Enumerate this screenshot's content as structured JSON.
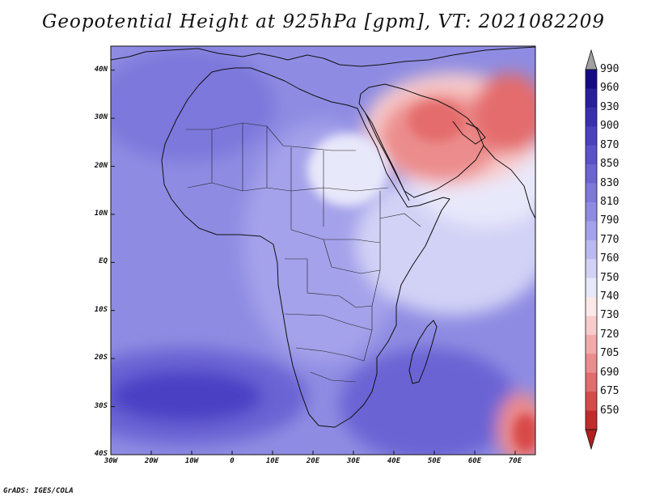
{
  "title": "Geopotential Height at 925hPa [gpm], VT: 2021082209",
  "credit": "GrADS: IGES/COLA",
  "map": {
    "projection": "latlon",
    "lon_range": [
      -30,
      75
    ],
    "lat_range": [
      -40,
      45
    ],
    "lat_ticks": [
      {
        "value": 40,
        "label": "40N"
      },
      {
        "value": 30,
        "label": "30N"
      },
      {
        "value": 20,
        "label": "20N"
      },
      {
        "value": 10,
        "label": "10N"
      },
      {
        "value": 0,
        "label": "EQ"
      },
      {
        "value": -10,
        "label": "10S"
      },
      {
        "value": -20,
        "label": "20S"
      },
      {
        "value": -30,
        "label": "30S"
      },
      {
        "value": -40,
        "label": "40S"
      }
    ],
    "lon_ticks": [
      {
        "value": -30,
        "label": "30W"
      },
      {
        "value": -20,
        "label": "20W"
      },
      {
        "value": -10,
        "label": "10W"
      },
      {
        "value": 0,
        "label": "0"
      },
      {
        "value": 10,
        "label": "10E"
      },
      {
        "value": 20,
        "label": "20E"
      },
      {
        "value": 30,
        "label": "30E"
      },
      {
        "value": 40,
        "label": "40E"
      },
      {
        "value": 50,
        "label": "50E"
      },
      {
        "value": 60,
        "label": "60E"
      },
      {
        "value": 70,
        "label": "70E"
      }
    ]
  },
  "colorbar": {
    "levels": [
      {
        "label": "990",
        "color": "#160a8a"
      },
      {
        "label": "960",
        "color": "#2a1ea0"
      },
      {
        "label": "930",
        "color": "#3a2eb4"
      },
      {
        "label": "900",
        "color": "#4a40c4"
      },
      {
        "label": "870",
        "color": "#5a52cc"
      },
      {
        "label": "850",
        "color": "#6a64d4"
      },
      {
        "label": "830",
        "color": "#7c78dc"
      },
      {
        "label": "810",
        "color": "#8e8ce2"
      },
      {
        "label": "790",
        "color": "#a4a2ea"
      },
      {
        "label": "770",
        "color": "#bab9f0"
      },
      {
        "label": "760",
        "color": "#d2d2f6"
      },
      {
        "label": "750",
        "color": "#e8e8fb"
      },
      {
        "label": "740",
        "color": "#fce8e8"
      },
      {
        "label": "730",
        "color": "#f8cccc"
      },
      {
        "label": "720",
        "color": "#f2aaaa"
      },
      {
        "label": "705",
        "color": "#ec8c8c"
      },
      {
        "label": "690",
        "color": "#e46c6c"
      },
      {
        "label": "675",
        "color": "#d84a4a"
      },
      {
        "label": "650",
        "color": "#c42a2a"
      }
    ],
    "top_arrow_color": "#a0a0a0",
    "bottom_arrow_color": "#b01e1e"
  }
}
